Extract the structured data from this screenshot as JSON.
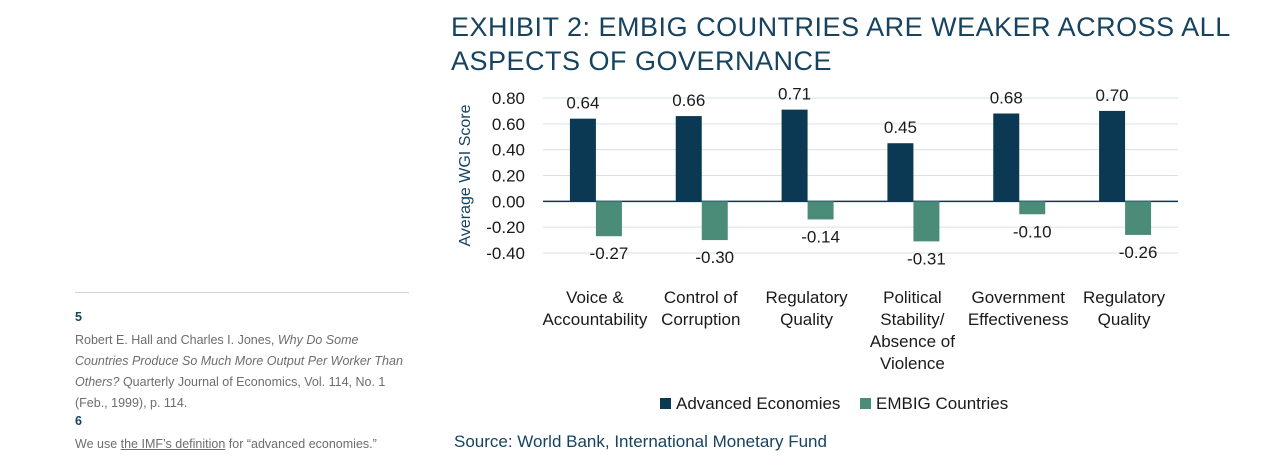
{
  "title": "EXHIBIT 2: EMBIG COUNTRIES ARE WEAKER ACROSS ALL ASPECTS OF GOVERNANCE",
  "source": "Source: World Bank, International Monetary Fund",
  "footnotes": [
    {
      "number": "5",
      "text_before": "Robert E. Hall and Charles I. Jones, ",
      "text_italic": "Why Do Some Countries Produce So Much More Output Per Worker Than Others?",
      "text_after": " Quarterly Journal of Economics, Vol. 114, No. 1 (Feb., 1999), p. 114."
    },
    {
      "number": "6",
      "text_before": "We use ",
      "link_text": "the IMF’s definition",
      "text_after": " for “advanced economies.”"
    }
  ],
  "colors": {
    "advanced": "#0b3954",
    "embig": "#4a8c78",
    "text": "#16435f",
    "grid": "#d6e1e8"
  },
  "chart_data": {
    "type": "bar",
    "ylabel": "Average WGI Score",
    "ylim": [
      -0.4,
      0.8
    ],
    "yticks": [
      "0.80",
      "0.60",
      "0.40",
      "0.20",
      "0.00",
      "-0.20",
      "-0.40"
    ],
    "grid": true,
    "legend_position": "bottom",
    "categories": [
      [
        "Voice &",
        "Accountability"
      ],
      [
        "Control of",
        "Corruption"
      ],
      [
        "Regulatory",
        "Quality"
      ],
      [
        "Political",
        "Stability/",
        "Absence of",
        "Violence"
      ],
      [
        "Government",
        "Effectiveness"
      ],
      [
        "Regulatory",
        "Quality"
      ]
    ],
    "series": [
      {
        "name": "Advanced Economies",
        "values": [
          0.64,
          0.66,
          0.71,
          0.45,
          0.68,
          0.7
        ],
        "labels": [
          "0.64",
          "0.66",
          "0.71",
          "0.45",
          "0.68",
          "0.70"
        ]
      },
      {
        "name": "EMBIG Countries",
        "values": [
          -0.27,
          -0.3,
          -0.14,
          -0.31,
          -0.1,
          -0.26
        ],
        "labels": [
          "-0.27",
          "-0.30",
          "-0.14",
          "-0.31",
          "-0.10",
          "-0.26"
        ]
      }
    ]
  }
}
